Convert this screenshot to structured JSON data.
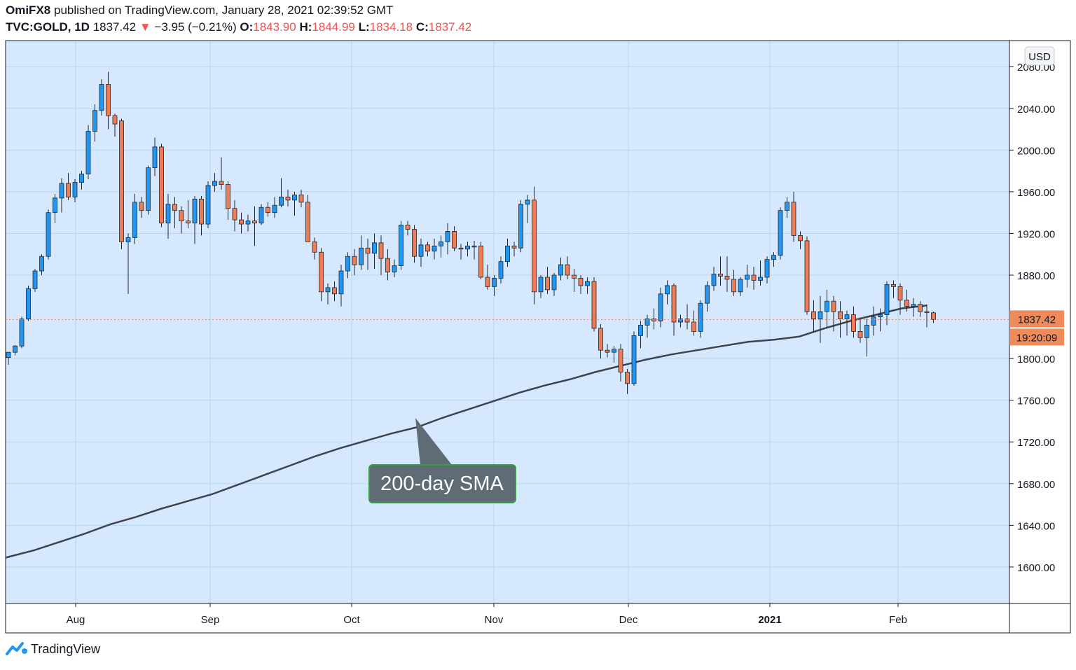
{
  "header": {
    "author": "OmiFX8",
    "published": "published on TradingView.com, January 28, 2021 02:39:52 GMT",
    "symbol": "TVC:GOLD, 1D",
    "last": "1837.42",
    "change_arrow": "▼",
    "change": "−3.95 (−0.21%)",
    "o_label": "O:",
    "o_val": "1843.90",
    "h_label": "H:",
    "h_val": "1844.99",
    "l_label": "L:",
    "l_val": "1834.18",
    "c_label": "C:",
    "c_val": "1837.42"
  },
  "footer": {
    "brand": "TradingView",
    "logo_icon": "tradingview-logo-icon"
  },
  "chart_data": {
    "type": "candlestick",
    "currency": "USD",
    "ylim": [
      1565,
      2105
    ],
    "y_ticks": [
      "2080.00",
      "2040.00",
      "2000.00",
      "1960.00",
      "1920.00",
      "1880.00",
      "1800.00",
      "1760.00",
      "1720.00",
      "1680.00",
      "1640.00",
      "1600.00"
    ],
    "x_tick_labels": [
      "Aug",
      "Sep",
      "Oct",
      "Nov",
      "Dec",
      "2021",
      "Feb"
    ],
    "x_tick_bold": [
      false,
      false,
      false,
      false,
      false,
      true,
      false
    ],
    "price_label": "1837.42",
    "countdown_label": "19:20:09",
    "annotation": "200-day SMA",
    "grid": true,
    "colors": {
      "bg": "#d6e8fd",
      "grid": "#b6d5f2",
      "up": "#2196f3",
      "down": "#ef7c54",
      "sma": "#3d4450",
      "callout": "#5f6b75",
      "callout_border": "#3a9b45",
      "price_tag": "#ef8a5a"
    },
    "candles": [
      [
        1801,
        1806,
        1794,
        1806
      ],
      [
        1806,
        1813,
        1803,
        1812
      ],
      [
        1812,
        1840,
        1810,
        1838
      ],
      [
        1838,
        1870,
        1836,
        1867
      ],
      [
        1867,
        1886,
        1864,
        1884
      ],
      [
        1884,
        1900,
        1880,
        1898
      ],
      [
        1898,
        1943,
        1895,
        1940
      ],
      [
        1940,
        1958,
        1930,
        1954
      ],
      [
        1954,
        1973,
        1940,
        1968
      ],
      [
        1968,
        1978,
        1952,
        1955
      ],
      [
        1955,
        1972,
        1950,
        1969
      ],
      [
        1969,
        1980,
        1962,
        1977
      ],
      [
        1977,
        2024,
        1972,
        2018
      ],
      [
        2018,
        2044,
        2008,
        2038
      ],
      [
        2038,
        2068,
        2033,
        2063
      ],
      [
        2063,
        2075,
        2020,
        2033
      ],
      [
        2033,
        2035,
        2013,
        2025
      ],
      [
        2028,
        2030,
        1905,
        1912
      ],
      [
        1912,
        1920,
        1862,
        1916
      ],
      [
        1916,
        1958,
        1910,
        1950
      ],
      [
        1950,
        1955,
        1935,
        1942
      ],
      [
        1942,
        1985,
        1938,
        1983
      ],
      [
        1983,
        2012,
        1975,
        2003
      ],
      [
        2003,
        2006,
        1926,
        1930
      ],
      [
        1930,
        1958,
        1915,
        1948
      ],
      [
        1948,
        1955,
        1925,
        1942
      ],
      [
        1942,
        1946,
        1920,
        1932
      ],
      [
        1932,
        1952,
        1925,
        1930
      ],
      [
        1930,
        1956,
        1910,
        1953
      ],
      [
        1953,
        1956,
        1918,
        1929
      ],
      [
        1929,
        1970,
        1925,
        1966
      ],
      [
        1966,
        1978,
        1960,
        1970
      ],
      [
        1970,
        1993,
        1962,
        1967
      ],
      [
        1967,
        1970,
        1933,
        1944
      ],
      [
        1944,
        1952,
        1922,
        1933
      ],
      [
        1933,
        1940,
        1920,
        1929
      ],
      [
        1929,
        1938,
        1922,
        1932
      ],
      [
        1932,
        1946,
        1908,
        1930
      ],
      [
        1930,
        1948,
        1928,
        1945
      ],
      [
        1945,
        1950,
        1936,
        1940
      ],
      [
        1940,
        1955,
        1935,
        1947
      ],
      [
        1947,
        1973,
        1945,
        1955
      ],
      [
        1955,
        1962,
        1946,
        1952
      ],
      [
        1952,
        1960,
        1937,
        1957
      ],
      [
        1957,
        1962,
        1945,
        1950
      ],
      [
        1950,
        1957,
        1916,
        1912
      ],
      [
        1912,
        1916,
        1895,
        1902
      ],
      [
        1902,
        1906,
        1855,
        1864
      ],
      [
        1864,
        1872,
        1852,
        1868
      ],
      [
        1868,
        1874,
        1855,
        1862
      ],
      [
        1862,
        1890,
        1850,
        1884
      ],
      [
        1884,
        1902,
        1877,
        1898
      ],
      [
        1898,
        1905,
        1880,
        1890
      ],
      [
        1890,
        1918,
        1885,
        1906
      ],
      [
        1906,
        1915,
        1885,
        1901
      ],
      [
        1901,
        1920,
        1886,
        1911
      ],
      [
        1911,
        1918,
        1880,
        1896
      ],
      [
        1896,
        1905,
        1875,
        1883
      ],
      [
        1883,
        1895,
        1878,
        1889
      ],
      [
        1889,
        1932,
        1885,
        1928
      ],
      [
        1928,
        1932,
        1918,
        1924
      ],
      [
        1924,
        1928,
        1892,
        1898
      ],
      [
        1898,
        1915,
        1888,
        1909
      ],
      [
        1909,
        1912,
        1898,
        1903
      ],
      [
        1903,
        1915,
        1895,
        1908
      ],
      [
        1908,
        1918,
        1897,
        1912
      ],
      [
        1912,
        1930,
        1900,
        1922
      ],
      [
        1922,
        1927,
        1903,
        1906
      ],
      [
        1906,
        1910,
        1895,
        1905
      ],
      [
        1905,
        1912,
        1898,
        1908
      ],
      [
        1908,
        1913,
        1895,
        1908
      ],
      [
        1908,
        1912,
        1876,
        1878
      ],
      [
        1878,
        1890,
        1866,
        1869
      ],
      [
        1869,
        1880,
        1860,
        1877
      ],
      [
        1877,
        1898,
        1872,
        1893
      ],
      [
        1893,
        1915,
        1888,
        1908
      ],
      [
        1908,
        1912,
        1898,
        1906
      ],
      [
        1906,
        1952,
        1902,
        1948
      ],
      [
        1948,
        1957,
        1930,
        1952
      ],
      [
        1952,
        1965,
        1852,
        1864
      ],
      [
        1864,
        1880,
        1858,
        1878
      ],
      [
        1878,
        1888,
        1862,
        1866
      ],
      [
        1866,
        1882,
        1860,
        1880
      ],
      [
        1880,
        1897,
        1875,
        1890
      ],
      [
        1890,
        1898,
        1876,
        1880
      ],
      [
        1880,
        1886,
        1864,
        1877
      ],
      [
        1877,
        1880,
        1862,
        1870
      ],
      [
        1870,
        1878,
        1862,
        1874
      ],
      [
        1874,
        1878,
        1826,
        1829
      ],
      [
        1829,
        1833,
        1800,
        1808
      ],
      [
        1808,
        1814,
        1801,
        1806
      ],
      [
        1806,
        1812,
        1796,
        1809
      ],
      [
        1809,
        1814,
        1778,
        1787
      ],
      [
        1787,
        1790,
        1766,
        1776
      ],
      [
        1776,
        1826,
        1774,
        1822
      ],
      [
        1822,
        1836,
        1810,
        1832
      ],
      [
        1832,
        1842,
        1820,
        1838
      ],
      [
        1838,
        1848,
        1828,
        1836
      ],
      [
        1836,
        1868,
        1830,
        1862
      ],
      [
        1862,
        1875,
        1852,
        1870
      ],
      [
        1870,
        1872,
        1822,
        1835
      ],
      [
        1835,
        1842,
        1830,
        1838
      ],
      [
        1838,
        1852,
        1828,
        1835
      ],
      [
        1835,
        1846,
        1822,
        1826
      ],
      [
        1826,
        1856,
        1820,
        1853
      ],
      [
        1853,
        1874,
        1845,
        1870
      ],
      [
        1870,
        1888,
        1865,
        1881
      ],
      [
        1881,
        1898,
        1870,
        1879
      ],
      [
        1879,
        1898,
        1864,
        1876
      ],
      [
        1876,
        1885,
        1860,
        1864
      ],
      [
        1864,
        1878,
        1860,
        1876
      ],
      [
        1876,
        1890,
        1868,
        1880
      ],
      [
        1880,
        1888,
        1866,
        1875
      ],
      [
        1875,
        1894,
        1870,
        1878
      ],
      [
        1878,
        1898,
        1872,
        1895
      ],
      [
        1895,
        1902,
        1888,
        1899
      ],
      [
        1899,
        1945,
        1895,
        1942
      ],
      [
        1942,
        1955,
        1935,
        1950
      ],
      [
        1950,
        1960,
        1912,
        1918
      ],
      [
        1918,
        1922,
        1905,
        1913
      ],
      [
        1913,
        1917,
        1842,
        1845
      ],
      [
        1845,
        1856,
        1826,
        1838
      ],
      [
        1838,
        1860,
        1815,
        1845
      ],
      [
        1845,
        1866,
        1830,
        1855
      ],
      [
        1855,
        1860,
        1826,
        1845
      ],
      [
        1845,
        1855,
        1820,
        1838
      ],
      [
        1838,
        1846,
        1822,
        1842
      ],
      [
        1842,
        1850,
        1820,
        1826
      ],
      [
        1826,
        1838,
        1815,
        1820
      ],
      [
        1820,
        1838,
        1802,
        1832
      ],
      [
        1832,
        1850,
        1822,
        1840
      ],
      [
        1840,
        1848,
        1826,
        1842
      ],
      [
        1842,
        1874,
        1832,
        1871
      ],
      [
        1871,
        1875,
        1858,
        1869
      ],
      [
        1869,
        1872,
        1842,
        1856
      ],
      [
        1856,
        1866,
        1845,
        1850
      ],
      [
        1850,
        1858,
        1840,
        1852
      ],
      [
        1852,
        1855,
        1840,
        1845
      ],
      [
        1845,
        1852,
        1830,
        1844
      ],
      [
        1843.9,
        1844.99,
        1834.18,
        1837.42
      ]
    ],
    "sma_points": [
      [
        0,
        1609
      ],
      [
        10,
        1616
      ],
      [
        20,
        1624
      ],
      [
        30,
        1632
      ],
      [
        40,
        1641
      ],
      [
        50,
        1648
      ],
      [
        60,
        1656
      ],
      [
        70,
        1663
      ],
      [
        80,
        1670
      ],
      [
        90,
        1679
      ],
      [
        100,
        1688
      ],
      [
        110,
        1697
      ],
      [
        120,
        1706
      ],
      [
        130,
        1714
      ],
      [
        140,
        1721
      ],
      [
        150,
        1728
      ],
      [
        160,
        1734
      ],
      [
        170,
        1743
      ],
      [
        180,
        1751
      ],
      [
        190,
        1759
      ],
      [
        200,
        1767
      ],
      [
        210,
        1774
      ],
      [
        220,
        1780
      ],
      [
        230,
        1787
      ],
      [
        240,
        1793
      ],
      [
        250,
        1799
      ],
      [
        260,
        1804
      ],
      [
        270,
        1808
      ],
      [
        280,
        1812
      ],
      [
        290,
        1816
      ],
      [
        300,
        1818
      ],
      [
        310,
        1821
      ],
      [
        320,
        1829
      ],
      [
        330,
        1836
      ],
      [
        340,
        1842
      ],
      [
        350,
        1848
      ],
      [
        360,
        1851
      ]
    ],
    "sma_x_end": 138
  }
}
